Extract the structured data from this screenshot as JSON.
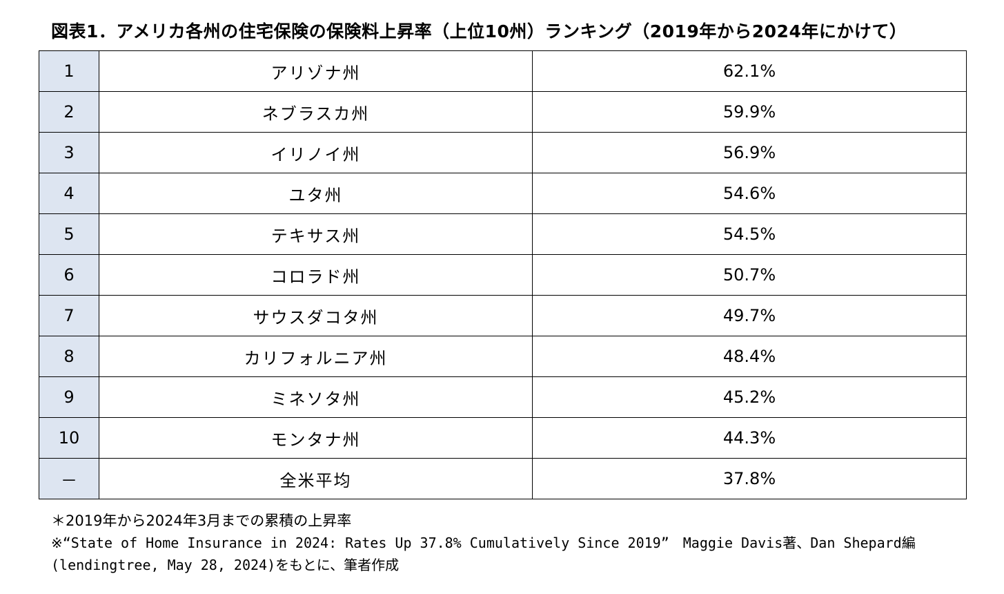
{
  "title": "図表1．アメリカ各州の住宅保険の保険料上昇率（上位10州）ランキング（2019年から2024年にかけて）",
  "rows": [
    {
      "rank": "1",
      "state": "アリゾナ州",
      "rate": "62.1%"
    },
    {
      "rank": "2",
      "state": "ネブラスカ州",
      "rate": "59.9%"
    },
    {
      "rank": "3",
      "state": "イリノイ州",
      "rate": "56.9%"
    },
    {
      "rank": "4",
      "state": "ユタ州",
      "rate": "54.6%"
    },
    {
      "rank": "5",
      "state": "テキサス州",
      "rate": "54.5%"
    },
    {
      "rank": "6",
      "state": "コロラド州",
      "rate": "50.7%"
    },
    {
      "rank": "7",
      "state": "サウスダコタ州",
      "rate": "49.7%"
    },
    {
      "rank": "8",
      "state": "カリフォルニア州",
      "rate": "48.4%"
    },
    {
      "rank": "9",
      "state": "ミネソタ州",
      "rate": "45.2%"
    },
    {
      "rank": "10",
      "state": "モンタナ州",
      "rate": "44.3%"
    },
    {
      "rank": "－",
      "state": "全米平均",
      "rate": "37.8%"
    }
  ],
  "notes": {
    "note1": "＊2019年から2024年3月までの累積の上昇率",
    "note2": "※“State of Home Insurance in 2024: Rates Up 37.8% Cumulatively Since 2019”　Maggie Davis著、Dan Shepard編",
    "note3": "(lendingtree, May 28, 2024)をもとに、筆者作成"
  },
  "colors": {
    "rank_cell_bg": "#dde5f1",
    "border": "#000000"
  }
}
